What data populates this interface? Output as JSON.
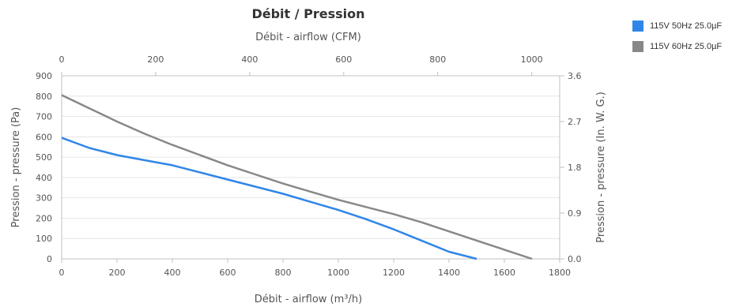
{
  "chart_data": {
    "type": "line",
    "title": "Débit / Pression",
    "x_bottom": {
      "label": "Débit - airflow (m³/h)",
      "range": [
        0,
        1800
      ],
      "ticks": [
        0,
        200,
        400,
        600,
        800,
        1000,
        1200,
        1400,
        1600,
        1800
      ]
    },
    "x_top": {
      "label": "Débit - airflow (CFM)",
      "range": [
        0,
        1059.4
      ],
      "ticks": [
        0,
        200,
        400,
        600,
        800,
        1000
      ]
    },
    "y_left": {
      "label": "Pression - pressure (Pa)",
      "range": [
        0,
        900
      ],
      "ticks": [
        0,
        100,
        200,
        300,
        400,
        500,
        600,
        700,
        800,
        900
      ]
    },
    "y_right": {
      "label": "Pression - pressure (In. W. G.)",
      "range": [
        0,
        3.6
      ],
      "ticks": [
        "0.0",
        "0.9",
        "1.8",
        "2.7",
        "3.6"
      ]
    },
    "grid": true,
    "legend_position": "top-right",
    "series": [
      {
        "name": "115V 50Hz 25.0µF",
        "color": "#2f86e8",
        "x": [
          0,
          100,
          200,
          300,
          400,
          500,
          600,
          700,
          800,
          900,
          1000,
          1100,
          1200,
          1300,
          1400,
          1500
        ],
        "y": [
          595,
          545,
          510,
          485,
          460,
          425,
          390,
          355,
          320,
          280,
          240,
          195,
          145,
          90,
          35,
          0
        ]
      },
      {
        "name": "115V 60Hz 25.0µF",
        "color": "#888888",
        "x": [
          0,
          100,
          200,
          300,
          400,
          500,
          600,
          700,
          800,
          900,
          1000,
          1100,
          1200,
          1300,
          1400,
          1500,
          1600,
          1700
        ],
        "y": [
          805,
          740,
          675,
          615,
          560,
          510,
          460,
          415,
          370,
          330,
          290,
          255,
          220,
          180,
          135,
          90,
          45,
          0
        ]
      }
    ]
  }
}
